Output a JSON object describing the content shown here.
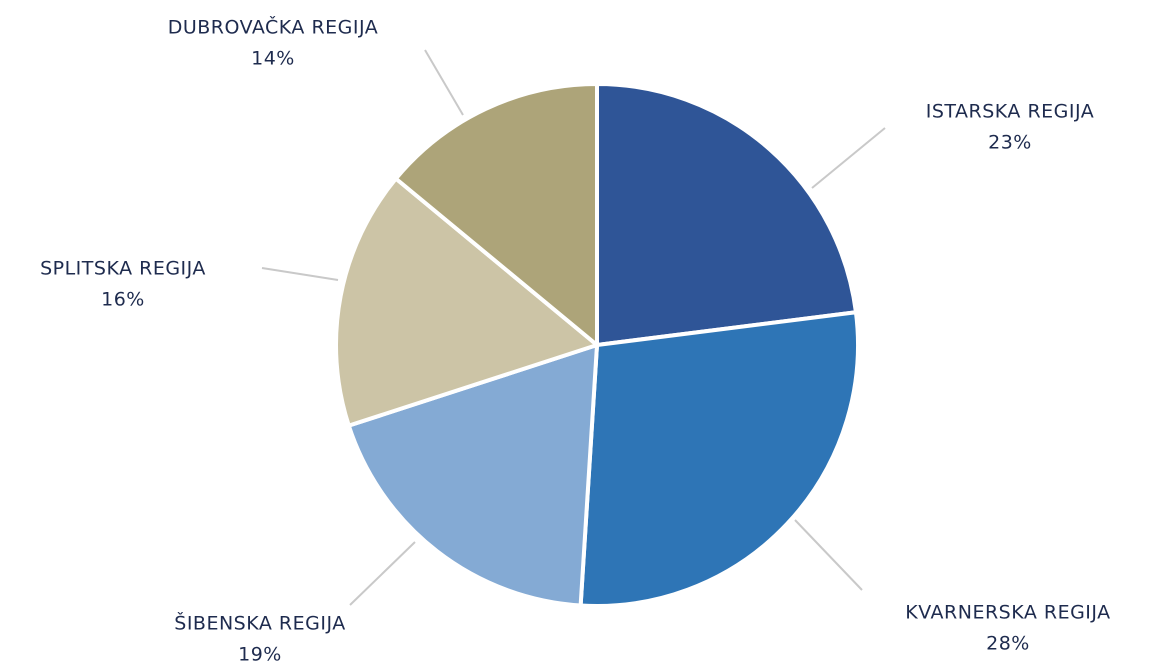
{
  "chart_data": {
    "type": "pie",
    "categories": [
      "ISTARSKA REGIJA",
      "KVARNERSKA REGIJA",
      "ŠIBENSKA REGIJA",
      "SPLITSKA REGIJA",
      "DUBROVAČKA REGIJA"
    ],
    "values": [
      23,
      28,
      19,
      16,
      14
    ],
    "value_labels": [
      "23%",
      "28%",
      "19%",
      "16%",
      "14%"
    ],
    "colors": [
      "#2f5597",
      "#2e75b6",
      "#84aad4",
      "#ccc4a6",
      "#ada479"
    ]
  }
}
